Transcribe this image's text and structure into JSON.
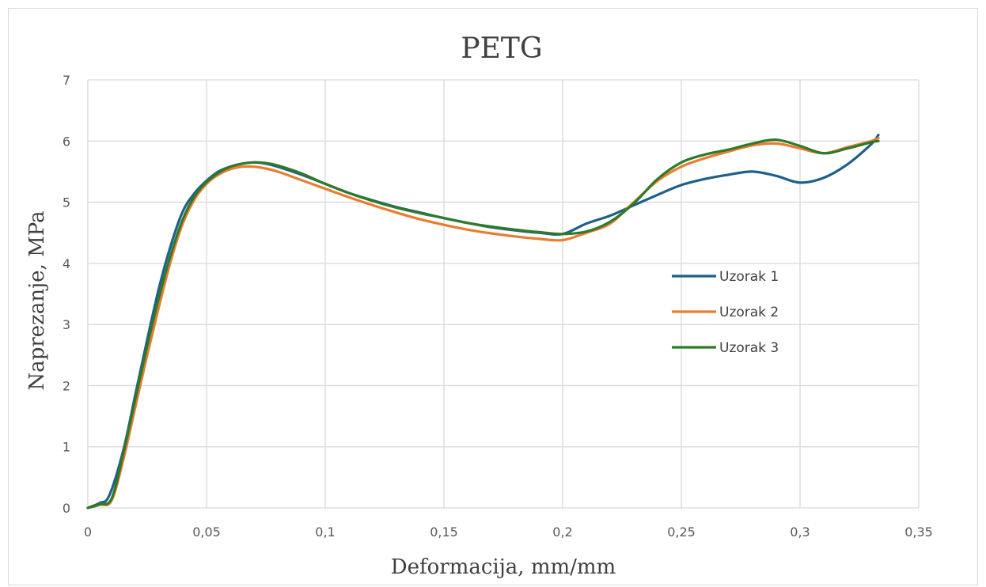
{
  "chart_data": {
    "type": "line",
    "title": "PETG",
    "xlabel": "Deformacija, mm/mm",
    "ylabel": "Naprezanje, MPa",
    "xlim": [
      0,
      0.35
    ],
    "ylim": [
      0,
      7
    ],
    "x_ticks": [
      0,
      0.05,
      0.1,
      0.15,
      0.2,
      0.25,
      0.3,
      0.35
    ],
    "x_tick_labels": [
      "0",
      "0,05",
      "0,1",
      "0,15",
      "0,2",
      "0,25",
      "0,3",
      "0,35"
    ],
    "y_ticks": [
      0,
      1,
      2,
      3,
      4,
      5,
      6,
      7
    ],
    "y_tick_labels": [
      "0",
      "1",
      "2",
      "3",
      "4",
      "5",
      "6",
      "7"
    ],
    "grid": true,
    "legend_position": "right",
    "series": [
      {
        "name": "Uzorak 1",
        "color": "#1f5f8b",
        "x": [
          0,
          0.005,
          0.009,
          0.015,
          0.02,
          0.025,
          0.03,
          0.035,
          0.04,
          0.045,
          0.05,
          0.055,
          0.06,
          0.065,
          0.07,
          0.075,
          0.08,
          0.09,
          0.1,
          0.11,
          0.12,
          0.13,
          0.14,
          0.15,
          0.16,
          0.17,
          0.18,
          0.19,
          0.2,
          0.21,
          0.22,
          0.23,
          0.24,
          0.25,
          0.26,
          0.27,
          0.28,
          0.29,
          0.3,
          0.31,
          0.32,
          0.33,
          0.333
        ],
        "y": [
          0,
          0.08,
          0.2,
          0.95,
          1.85,
          2.75,
          3.6,
          4.3,
          4.85,
          5.15,
          5.35,
          5.5,
          5.58,
          5.63,
          5.65,
          5.63,
          5.58,
          5.45,
          5.3,
          5.15,
          5.03,
          4.92,
          4.83,
          4.74,
          4.66,
          4.59,
          4.54,
          4.5,
          4.48,
          4.65,
          4.78,
          4.95,
          5.12,
          5.28,
          5.38,
          5.45,
          5.5,
          5.43,
          5.32,
          5.4,
          5.62,
          5.95,
          6.1
        ]
      },
      {
        "name": "Uzorak 2",
        "color": "#e97c30",
        "x": [
          0,
          0.005,
          0.01,
          0.015,
          0.02,
          0.025,
          0.03,
          0.035,
          0.04,
          0.045,
          0.05,
          0.055,
          0.06,
          0.065,
          0.07,
          0.075,
          0.08,
          0.09,
          0.1,
          0.11,
          0.12,
          0.13,
          0.14,
          0.15,
          0.16,
          0.17,
          0.18,
          0.19,
          0.2,
          0.21,
          0.22,
          0.23,
          0.24,
          0.25,
          0.26,
          0.27,
          0.28,
          0.29,
          0.3,
          0.31,
          0.32,
          0.33,
          0.333
        ],
        "y": [
          0,
          0.05,
          0.12,
          0.8,
          1.65,
          2.5,
          3.3,
          4.05,
          4.65,
          5.05,
          5.3,
          5.45,
          5.54,
          5.58,
          5.58,
          5.55,
          5.5,
          5.36,
          5.22,
          5.08,
          4.95,
          4.83,
          4.72,
          4.63,
          4.55,
          4.49,
          4.44,
          4.4,
          4.38,
          4.5,
          4.65,
          5.0,
          5.35,
          5.58,
          5.72,
          5.83,
          5.93,
          5.96,
          5.88,
          5.8,
          5.9,
          6.0,
          6.05
        ]
      },
      {
        "name": "Uzorak 3",
        "color": "#2e7a2a",
        "x": [
          0,
          0.005,
          0.01,
          0.015,
          0.02,
          0.025,
          0.03,
          0.035,
          0.04,
          0.045,
          0.05,
          0.055,
          0.06,
          0.065,
          0.07,
          0.075,
          0.08,
          0.09,
          0.1,
          0.11,
          0.12,
          0.13,
          0.14,
          0.15,
          0.16,
          0.17,
          0.18,
          0.19,
          0.2,
          0.21,
          0.22,
          0.23,
          0.24,
          0.25,
          0.26,
          0.27,
          0.28,
          0.29,
          0.3,
          0.31,
          0.32,
          0.33,
          0.333
        ],
        "y": [
          0,
          0.06,
          0.15,
          0.9,
          1.78,
          2.65,
          3.45,
          4.15,
          4.72,
          5.1,
          5.33,
          5.48,
          5.58,
          5.63,
          5.65,
          5.64,
          5.6,
          5.47,
          5.3,
          5.15,
          5.02,
          4.91,
          4.82,
          4.74,
          4.66,
          4.6,
          4.55,
          4.51,
          4.48,
          4.52,
          4.68,
          4.98,
          5.38,
          5.65,
          5.78,
          5.86,
          5.96,
          6.02,
          5.92,
          5.8,
          5.88,
          5.98,
          6.0
        ]
      }
    ]
  }
}
